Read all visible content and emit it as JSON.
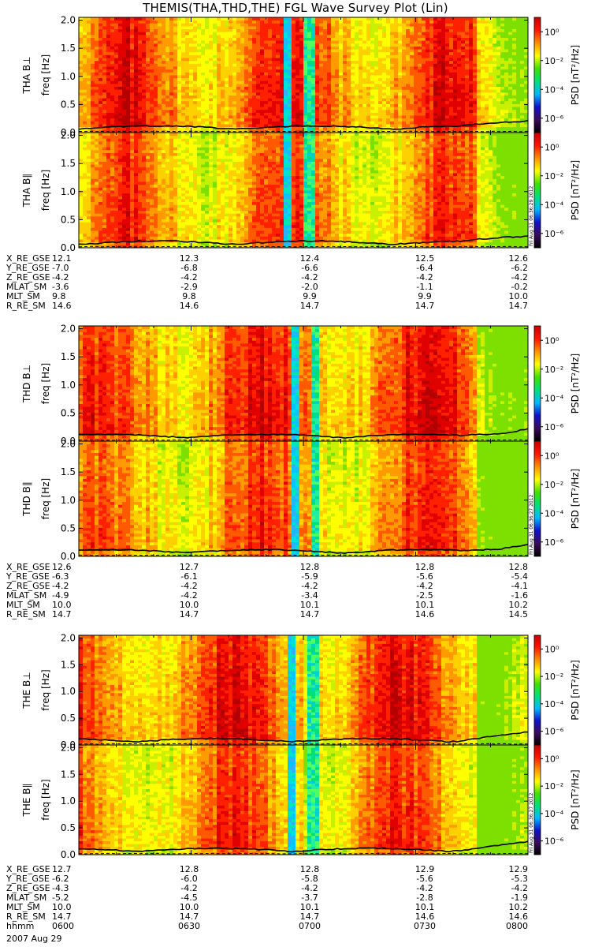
{
  "title": "THEMIS(THA,THD,THE) FGL Wave Survey Plot (Lin)",
  "date_label": "2007 Aug 29",
  "colorbar": {
    "label": "PSD [nT²/Hz]",
    "tick_labels": [
      "10⁰",
      "10⁻²",
      "10⁻⁴",
      "10⁻⁶"
    ],
    "log_range": [
      -7,
      1
    ],
    "stops": [
      "#000000",
      "#3a0a5a",
      "#1010c8",
      "#00b8ff",
      "#00e07a",
      "#40e000",
      "#ffff00",
      "#ff9000",
      "#ff1500",
      "#c80000"
    ]
  },
  "chart_data": [
    {
      "type": "heatmap",
      "probe": "THA",
      "panels": [
        {
          "ylabel_top": "THA B⊥",
          "ylabel": "freq [Hz]",
          "stamp": ""
        },
        {
          "ylabel_top": "THA B∥",
          "ylabel": "freq [Hz]",
          "stamp": "Fri Aug 31 06:36:29 2012"
        }
      ],
      "ylim": [
        0,
        2.05
      ],
      "yticks": [
        "0.0",
        "0.5",
        "1.0",
        "1.5",
        "2.0"
      ],
      "x_time_range": [
        "0600",
        "0800"
      ],
      "quiet_bands": [
        {
          "t_start": "0655",
          "t_end": "0657",
          "color": "cyan"
        },
        {
          "t_start": "0700",
          "t_end": "0703",
          "color": "green"
        }
      ],
      "ephemeris": [
        {
          "label": "X_RE_GSE",
          "values": [
            "12.1",
            "12.3",
            "12.4",
            "12.5",
            "12.6"
          ]
        },
        {
          "label": "Y_RE_GSE",
          "values": [
            "-7.0",
            "-6.8",
            "-6.6",
            "-6.4",
            "-6.2"
          ]
        },
        {
          "label": "Z_RE_GSE",
          "values": [
            "-4.2",
            "-4.2",
            "-4.2",
            "-4.2",
            "-4.2"
          ]
        },
        {
          "label": "MLAT_SM",
          "values": [
            "-3.6",
            "-2.9",
            "-2.0",
            "-1.1",
            "-0.2"
          ]
        },
        {
          "label": "MLT_SM",
          "values": [
            "9.8",
            "9.8",
            "9.9",
            "9.9",
            "10.0"
          ]
        },
        {
          "label": "R_RE_SM",
          "values": [
            "14.6",
            "14.6",
            "14.7",
            "14.7",
            "14.7"
          ]
        }
      ]
    },
    {
      "type": "heatmap",
      "probe": "THD",
      "panels": [
        {
          "ylabel_top": "THD B⊥",
          "ylabel": "freq [Hz]",
          "stamp": ""
        },
        {
          "ylabel_top": "THD B∥",
          "ylabel": "freq [Hz]",
          "stamp": "Fri Aug 31 06:36:27 2012"
        }
      ],
      "ylim": [
        0,
        2.05
      ],
      "yticks": [
        "0.0",
        "0.5",
        "1.0",
        "1.5",
        "2.0"
      ],
      "x_time_range": [
        "0600",
        "0800"
      ],
      "quiet_bands": [
        {
          "t_start": "0657",
          "t_end": "0659",
          "color": "cyan"
        },
        {
          "t_start": "0702",
          "t_end": "0704",
          "color": "green"
        }
      ],
      "ephemeris": [
        {
          "label": "X_RE_GSE",
          "values": [
            "12.6",
            "12.7",
            "12.8",
            "12.8",
            "12.8"
          ]
        },
        {
          "label": "Y_RE_GSE",
          "values": [
            "-6.3",
            "-6.1",
            "-5.9",
            "-5.6",
            "-5.4"
          ]
        },
        {
          "label": "Z_RE_GSE",
          "values": [
            "-4.2",
            "-4.2",
            "-4.2",
            "-4.2",
            "-4.1"
          ]
        },
        {
          "label": "MLAT_SM",
          "values": [
            "-4.9",
            "-4.2",
            "-3.4",
            "-2.5",
            "-1.6"
          ]
        },
        {
          "label": "MLT_SM",
          "values": [
            "10.0",
            "10.0",
            "10.1",
            "10.1",
            "10.2"
          ]
        },
        {
          "label": "R_RE_SM",
          "values": [
            "14.7",
            "14.7",
            "14.7",
            "14.6",
            "14.5"
          ]
        }
      ]
    },
    {
      "type": "heatmap",
      "probe": "THE",
      "panels": [
        {
          "ylabel_top": "THE B⊥",
          "ylabel": "freq [Hz]",
          "stamp": ""
        },
        {
          "ylabel_top": "THE B∥",
          "ylabel": "freq [Hz]",
          "stamp": "Fri Aug 31 06:36:27 2012"
        }
      ],
      "ylim": [
        0,
        2.05
      ],
      "yticks": [
        "0.0",
        "0.5",
        "1.0",
        "1.5",
        "2.0"
      ],
      "x_time_range": [
        "0600",
        "0800"
      ],
      "quiet_bands": [
        {
          "t_start": "0656",
          "t_end": "0658",
          "color": "cyan"
        },
        {
          "t_start": "0701",
          "t_end": "0704",
          "color": "green"
        }
      ],
      "ephemeris": [
        {
          "label": "X_RE_GSE",
          "values": [
            "12.7",
            "12.8",
            "12.8",
            "12.9",
            "12.9"
          ]
        },
        {
          "label": "Y_RE_GSE",
          "values": [
            "-6.2",
            "-6.0",
            "-5.8",
            "-5.6",
            "-5.3"
          ]
        },
        {
          "label": "Z_RE_GSE",
          "values": [
            "-4.3",
            "-4.2",
            "-4.2",
            "-4.2",
            "-4.2"
          ]
        },
        {
          "label": "MLAT_SM",
          "values": [
            "-5.2",
            "-4.5",
            "-3.7",
            "-2.8",
            "-1.9"
          ]
        },
        {
          "label": "MLT_SM",
          "values": [
            "10.0",
            "10.0",
            "10.1",
            "10.1",
            "10.2"
          ]
        },
        {
          "label": "R_RE_SM",
          "values": [
            "14.7",
            "14.7",
            "14.7",
            "14.6",
            "14.6"
          ]
        },
        {
          "label": "hhmm",
          "values": [
            "0600",
            "0630",
            "0700",
            "0730",
            "0800"
          ]
        }
      ]
    }
  ]
}
